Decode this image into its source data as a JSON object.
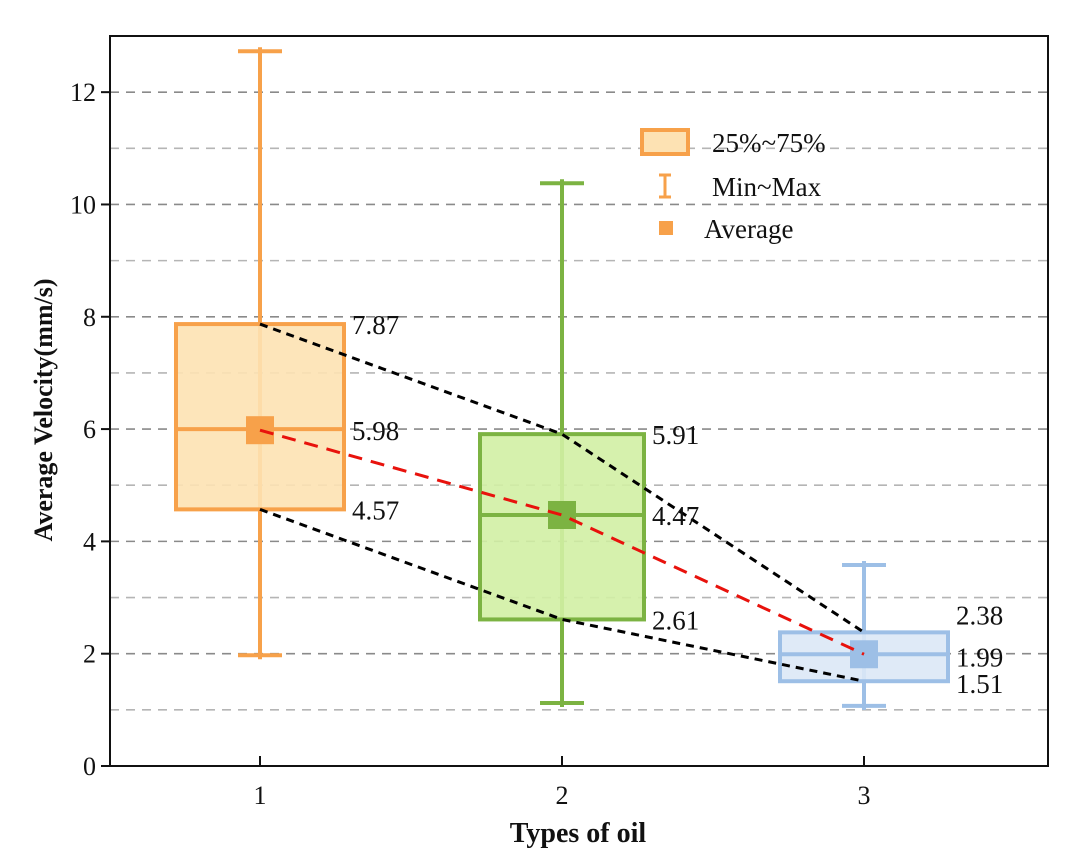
{
  "chart_data": {
    "type": "box",
    "title": "",
    "xlabel": "Types of oil",
    "ylabel": "Average Velocity(mm/s)",
    "categories": [
      "1",
      "2",
      "3"
    ],
    "ylim": [
      0,
      13
    ],
    "yticks": [
      0,
      2,
      4,
      6,
      8,
      10,
      12
    ],
    "ytick_labels": [
      "0",
      "2",
      "4",
      "6",
      "8",
      "10",
      "12"
    ],
    "grid": true,
    "legend_position": "top-right",
    "legend": [
      {
        "key": "box",
        "label": "25%~75%"
      },
      {
        "key": "range",
        "label": "Min~Max"
      },
      {
        "key": "mean",
        "label": "Average"
      }
    ],
    "boxes": [
      {
        "category": "1",
        "min": 1.9,
        "q1": 4.57,
        "median": 6.0,
        "q3": 7.87,
        "max": 12.8,
        "mean": 5.98,
        "labels": {
          "q3": "7.87",
          "mean": "5.98",
          "q1": "4.57"
        },
        "color": "#f7a14a",
        "fill": "#fde2b3"
      },
      {
        "category": "2",
        "min": 1.05,
        "q1": 2.61,
        "median": 4.47,
        "q3": 5.91,
        "max": 10.45,
        "mean": 4.47,
        "labels": {
          "q3": "5.91",
          "mean": "4.47",
          "q1": "2.61"
        },
        "color": "#7cb342",
        "fill": "#d2f0a4"
      },
      {
        "category": "3",
        "min": 1.0,
        "q1": 1.51,
        "median": 1.99,
        "q3": 2.38,
        "max": 3.65,
        "mean": 1.99,
        "labels": {
          "q3": "2.38",
          "mean": "1.99",
          "q1": "1.51"
        },
        "color": "#9dbfe6",
        "fill": "#dce8f6"
      }
    ],
    "connector_colors": {
      "quartiles": "#000000",
      "mean": "#e8120c"
    }
  }
}
